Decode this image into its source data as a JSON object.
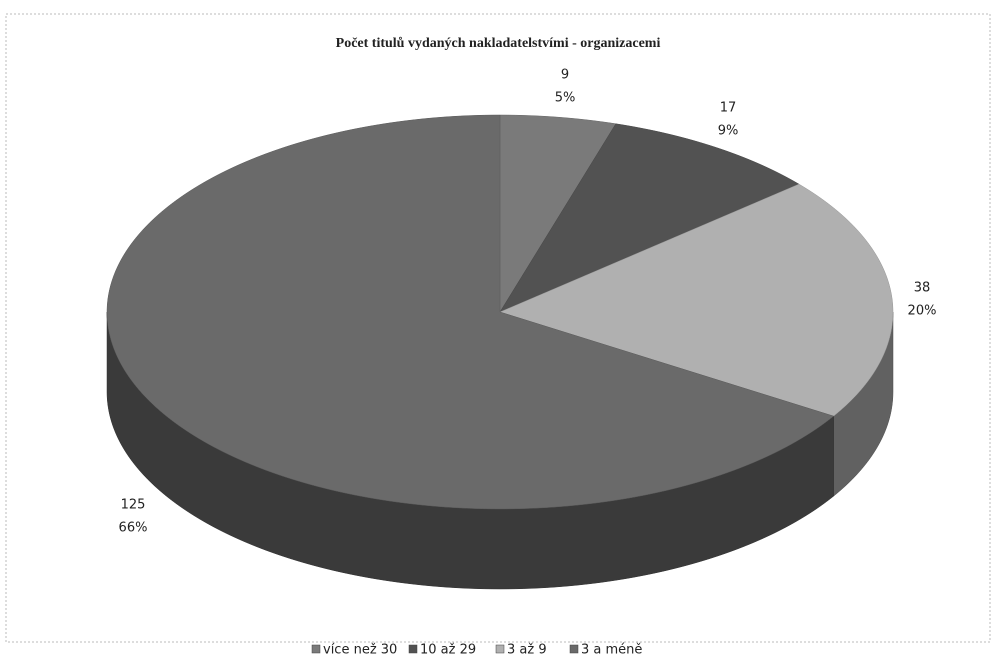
{
  "chart_data": {
    "type": "pie3d",
    "title": "Počet titulů vydaných nakladatelstvími - organizacemi",
    "categories": [
      "více než 30",
      "10 až 29",
      "3 až 9",
      "3 a méně"
    ],
    "values": [
      9,
      17,
      38,
      125
    ],
    "percent_labels": [
      "5%",
      "9%",
      "20%",
      "66%"
    ],
    "colors": [
      "#7a7a7a",
      "#525252",
      "#b0b0b0",
      "#6a6a6a"
    ],
    "legend": "bottom"
  }
}
